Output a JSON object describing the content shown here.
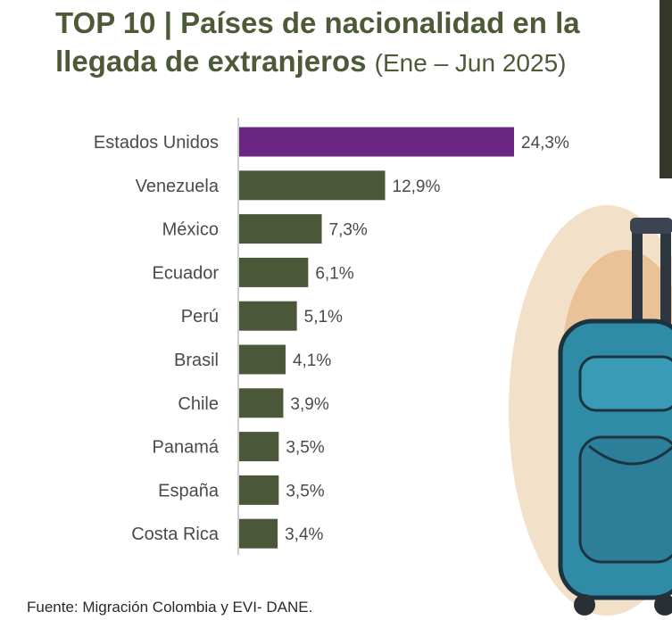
{
  "title": {
    "main": "TOP 10 | Países de nacionalidad en la llegada de extranjeros",
    "period": "(Ene – Jun 2025)"
  },
  "chart_data": {
    "type": "bar",
    "orientation": "horizontal",
    "categories": [
      "Estados Unidos",
      "Venezuela",
      "México",
      "Ecuador",
      "Perú",
      "Brasil",
      "Chile",
      "Panamá",
      "España",
      "Costa Rica"
    ],
    "values": [
      24.3,
      12.9,
      7.3,
      6.1,
      5.1,
      4.1,
      3.9,
      3.5,
      3.5,
      3.4
    ],
    "value_labels": [
      "24,3%",
      "12,9%",
      "7,3%",
      "6,1%",
      "5,1%",
      "4,1%",
      "3,9%",
      "3,5%",
      "3,5%",
      "3,4%"
    ],
    "highlight_index": 0,
    "colors": {
      "highlight": "#6a2680",
      "default": "#4b5739",
      "axis": "#bdbdbd"
    },
    "grid": false,
    "legend": "none"
  },
  "source": "Fuente: Migración Colombia y EVI- DANE.",
  "decor": {
    "illustration": "luggage-illustration"
  }
}
